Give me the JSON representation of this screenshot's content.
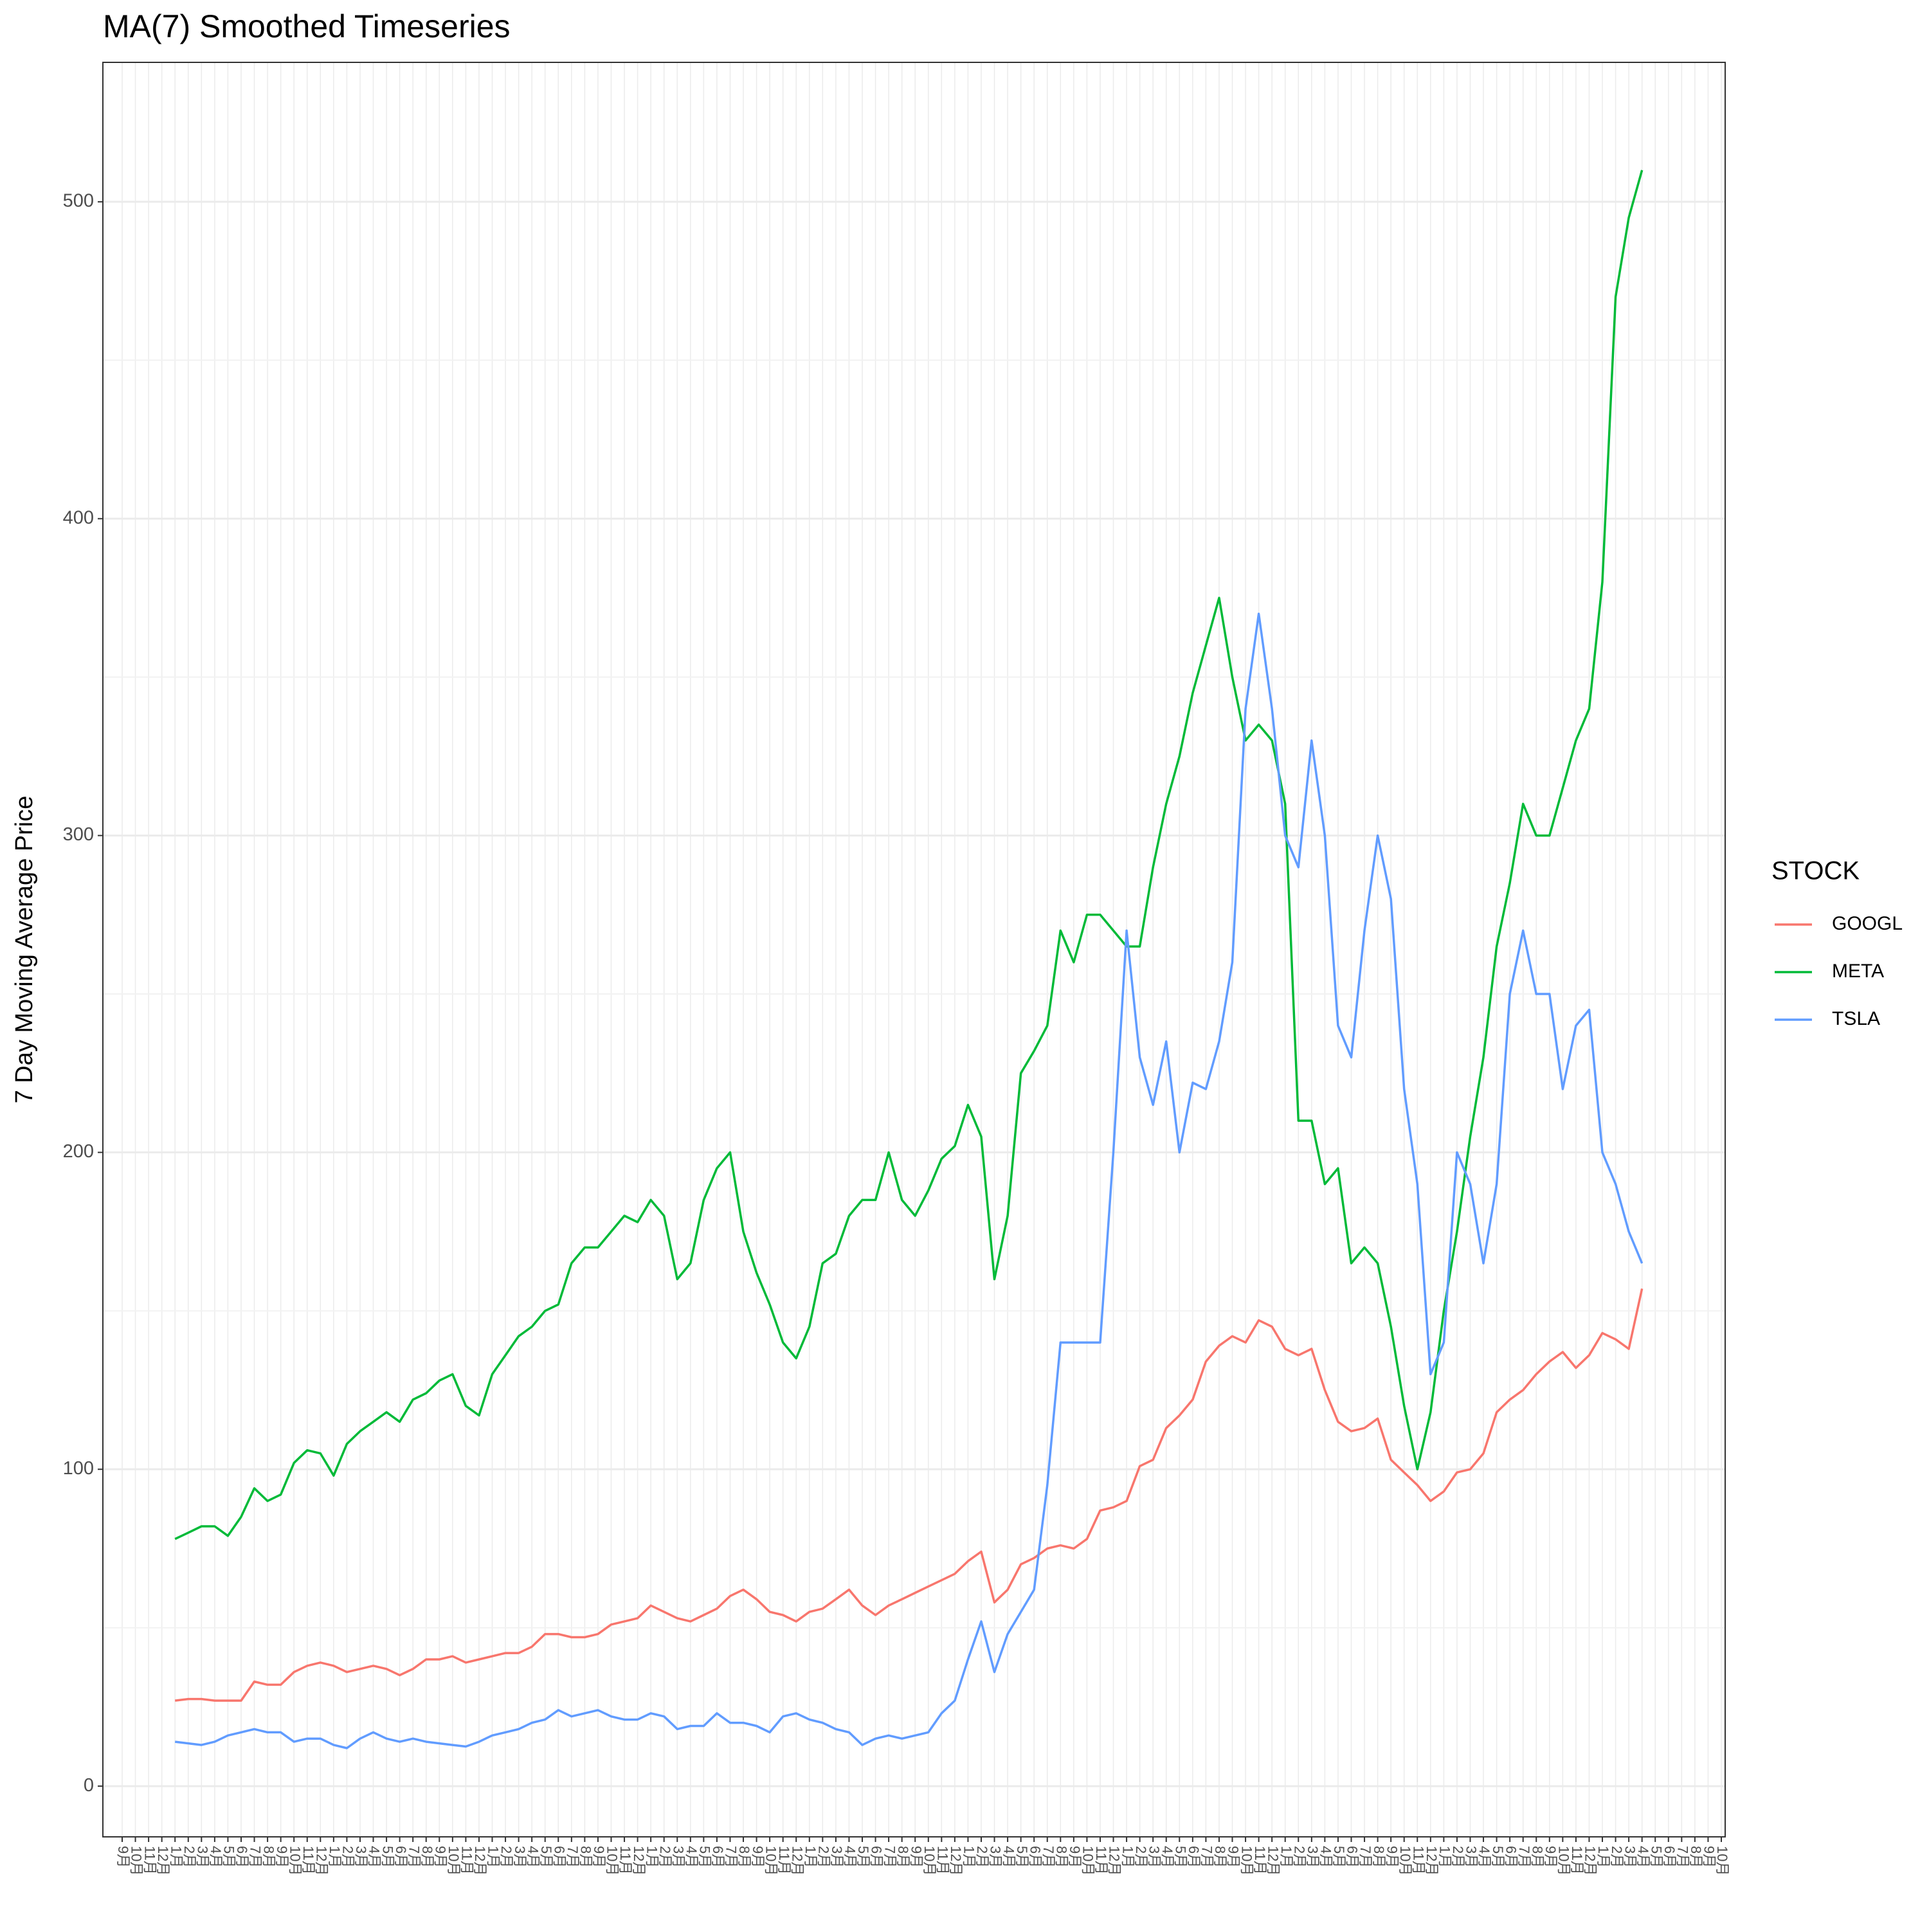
{
  "chart_data": {
    "type": "line",
    "title": "MA(7) Smoothed Timeseries",
    "y_label": "7 Day Moving Average Price",
    "legend_title": "STOCK",
    "legend_position": "right",
    "grid": true,
    "ylim": [
      -16,
      544
    ],
    "yticks": [
      0,
      100,
      200,
      300,
      400,
      500
    ],
    "yminor": [
      50,
      150,
      250,
      350,
      450
    ],
    "categories": [
      "9月",
      "10月",
      "11月",
      "12月",
      "1月",
      "2月",
      "3月",
      "4月",
      "5月",
      "6月",
      "7月",
      "8月",
      "9月",
      "10月",
      "11月",
      "12月",
      "1月",
      "2月",
      "3月",
      "4月",
      "5月",
      "6月",
      "7月",
      "8月",
      "9月",
      "10月",
      "11月",
      "12月",
      "1月",
      "2月",
      "3月",
      "4月",
      "5月",
      "6月",
      "7月",
      "8月",
      "9月",
      "10月",
      "11月",
      "12月",
      "1月",
      "2月",
      "3月",
      "4月",
      "5月",
      "6月",
      "7月",
      "8月",
      "9月",
      "10月",
      "11月",
      "12月",
      "1月",
      "2月",
      "3月",
      "4月",
      "5月",
      "6月",
      "7月",
      "8月",
      "9月",
      "10月",
      "11月",
      "12月",
      "1月",
      "2月",
      "3月",
      "4月",
      "5月",
      "6月",
      "7月",
      "8月",
      "9月",
      "10月",
      "11月",
      "12月",
      "1月",
      "2月",
      "3月",
      "4月",
      "5月",
      "6月",
      "7月",
      "8月",
      "9月",
      "10月",
      "11月",
      "12月",
      "1月",
      "2月",
      "3月",
      "4月",
      "5月",
      "6月",
      "7月",
      "8月",
      "9月",
      "10月",
      "11月",
      "12月",
      "1月",
      "2月",
      "3月",
      "4月",
      "5月",
      "6月",
      "7月",
      "8月",
      "9月",
      "10月",
      "11月",
      "12月",
      "1月",
      "2月",
      "3月",
      "4月",
      "5月",
      "6月",
      "7月",
      "8月",
      "9月",
      "10月"
    ],
    "series": [
      {
        "name": "GOOGL",
        "color": "#F8766D",
        "values": [
          null,
          null,
          null,
          null,
          27,
          27.5,
          27.5,
          27,
          27,
          27,
          33,
          32,
          32,
          36,
          38,
          39,
          38,
          36,
          37,
          38,
          37,
          35,
          37,
          40,
          40,
          41,
          39,
          40,
          41,
          42,
          42,
          44,
          48,
          48,
          47,
          47,
          48,
          51,
          52,
          53,
          57,
          55,
          53,
          52,
          54,
          56,
          60,
          62,
          59,
          55,
          54,
          52,
          55,
          56,
          59,
          62,
          57,
          54,
          57,
          59,
          61,
          63,
          65,
          67,
          71,
          74,
          58,
          62,
          70,
          72,
          75,
          76,
          75,
          78,
          87,
          88,
          90,
          101,
          103,
          113,
          117,
          122,
          134,
          139,
          142,
          140,
          147,
          145,
          138,
          136,
          138,
          125,
          115,
          112,
          113,
          116,
          103,
          99,
          95,
          90,
          93,
          99,
          100,
          105,
          118,
          122,
          125,
          130,
          134,
          137,
          132,
          136,
          143,
          141,
          138,
          157,
          null,
          null,
          null,
          null,
          null,
          null
        ]
      },
      {
        "name": "META",
        "color": "#00BA38",
        "values": [
          null,
          null,
          null,
          null,
          78,
          80,
          82,
          82,
          79,
          85,
          94,
          90,
          92,
          102,
          106,
          105,
          98,
          108,
          112,
          115,
          118,
          115,
          122,
          124,
          128,
          130,
          120,
          117,
          130,
          136,
          142,
          145,
          150,
          152,
          165,
          170,
          170,
          175,
          180,
          178,
          185,
          180,
          160,
          165,
          185,
          195,
          200,
          175,
          162,
          152,
          140,
          135,
          145,
          165,
          168,
          180,
          185,
          185,
          200,
          185,
          180,
          188,
          198,
          202,
          215,
          205,
          160,
          180,
          225,
          232,
          240,
          270,
          260,
          275,
          275,
          270,
          265,
          265,
          290,
          310,
          325,
          345,
          360,
          375,
          350,
          330,
          335,
          330,
          310,
          210,
          210,
          190,
          195,
          165,
          170,
          165,
          145,
          120,
          100,
          118,
          150,
          175,
          205,
          230,
          265,
          285,
          310,
          300,
          300,
          315,
          330,
          340,
          380,
          470,
          495,
          510,
          null,
          null,
          null,
          null,
          null,
          null
        ]
      },
      {
        "name": "TSLA",
        "color": "#619CFF",
        "values": [
          null,
          null,
          null,
          null,
          14,
          13.5,
          13,
          14,
          16,
          17,
          18,
          17,
          17,
          14,
          15,
          15,
          13,
          12,
          15,
          17,
          15,
          14,
          15,
          14,
          13.5,
          13,
          12.5,
          14,
          16,
          17,
          18,
          20,
          21,
          24,
          22,
          23,
          24,
          22,
          21,
          21,
          23,
          22,
          18,
          19,
          19,
          23,
          20,
          20,
          19,
          17,
          22,
          23,
          21,
          20,
          18,
          17,
          13,
          15,
          16,
          15,
          16,
          17,
          23,
          27,
          40,
          52,
          36,
          48,
          55,
          62,
          95,
          140,
          140,
          140,
          140,
          200,
          270,
          230,
          215,
          235,
          200,
          222,
          220,
          235,
          260,
          340,
          370,
          340,
          300,
          290,
          330,
          300,
          240,
          230,
          270,
          300,
          280,
          220,
          190,
          130,
          140,
          200,
          190,
          165,
          190,
          250,
          270,
          250,
          250,
          220,
          240,
          245,
          200,
          190,
          175,
          165,
          null,
          null,
          null,
          null,
          null,
          null
        ]
      }
    ]
  }
}
